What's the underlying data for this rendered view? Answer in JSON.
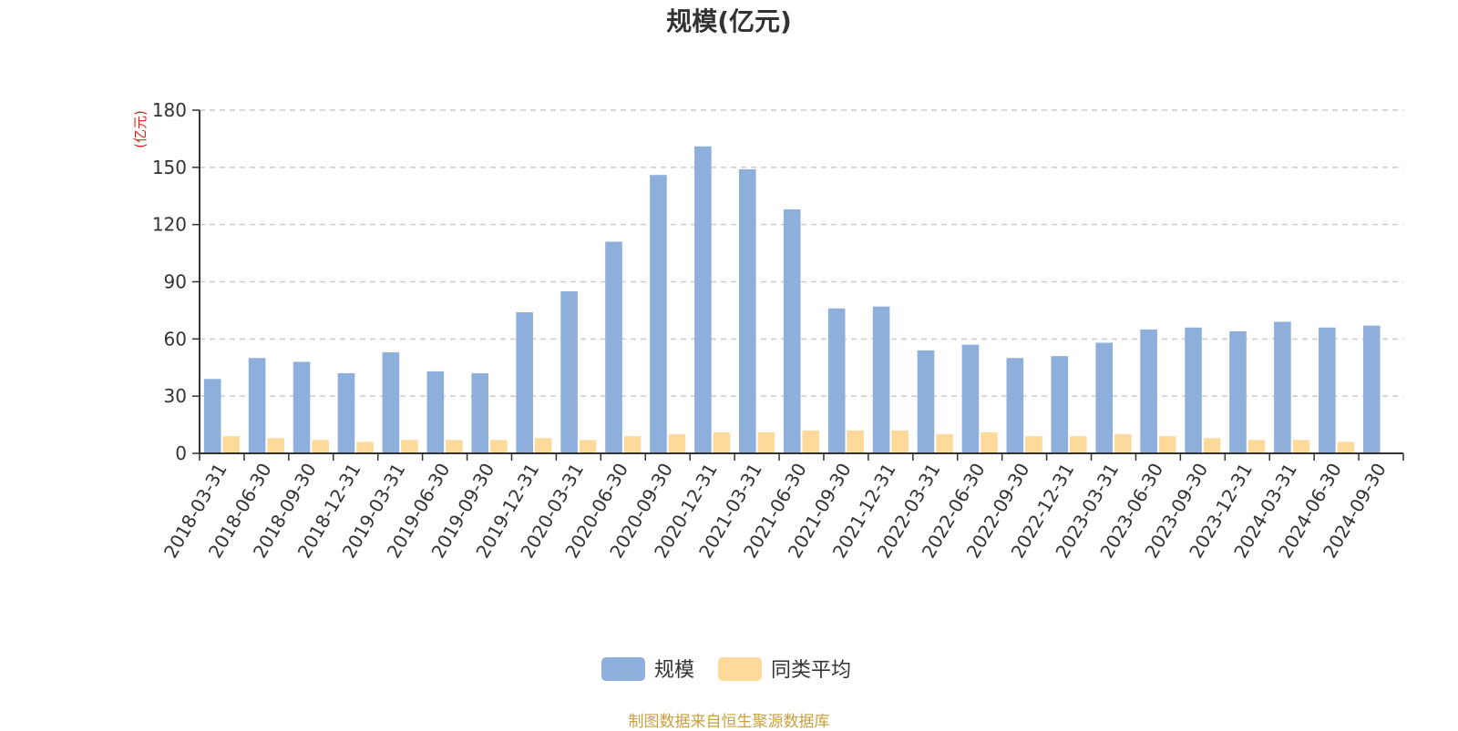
{
  "title": "规模(亿元)",
  "footer": "制图数据来自恒生聚源数据库",
  "colors": {
    "scale": "#8eaedb",
    "avg": "#fdd99a",
    "axis": "#333333",
    "grid": "#cccccc",
    "unit": "#e02020"
  },
  "chart_data": {
    "type": "bar",
    "title": "规模(亿元)",
    "ylabel": "(亿元)",
    "ylim": [
      0,
      180
    ],
    "yticks": [
      0,
      30,
      60,
      90,
      120,
      150,
      180
    ],
    "grid": true,
    "legend_position": "bottom-center",
    "categories": [
      "2018-03-31",
      "2018-06-30",
      "2018-09-30",
      "2018-12-31",
      "2019-03-31",
      "2019-06-30",
      "2019-09-30",
      "2019-12-31",
      "2020-03-31",
      "2020-06-30",
      "2020-09-30",
      "2020-12-31",
      "2021-03-31",
      "2021-06-30",
      "2021-09-30",
      "2021-12-31",
      "2022-03-31",
      "2022-06-30",
      "2022-09-30",
      "2022-12-31",
      "2023-03-31",
      "2023-06-30",
      "2023-09-30",
      "2023-12-31",
      "2024-03-31",
      "2024-06-30",
      "2024-09-30"
    ],
    "series": [
      {
        "name": "规模",
        "values": [
          39,
          50,
          48,
          42,
          53,
          43,
          42,
          74,
          85,
          111,
          146,
          161,
          149,
          128,
          76,
          77,
          54,
          57,
          50,
          51,
          58,
          65,
          66,
          64,
          69,
          66,
          67
        ]
      },
      {
        "name": "同类平均",
        "values": [
          9,
          8,
          7,
          6,
          7,
          7,
          7,
          8,
          7,
          9,
          10,
          11,
          11,
          12,
          12,
          12,
          10,
          11,
          9,
          9,
          10,
          9,
          8,
          7,
          7,
          6,
          null
        ]
      }
    ]
  }
}
